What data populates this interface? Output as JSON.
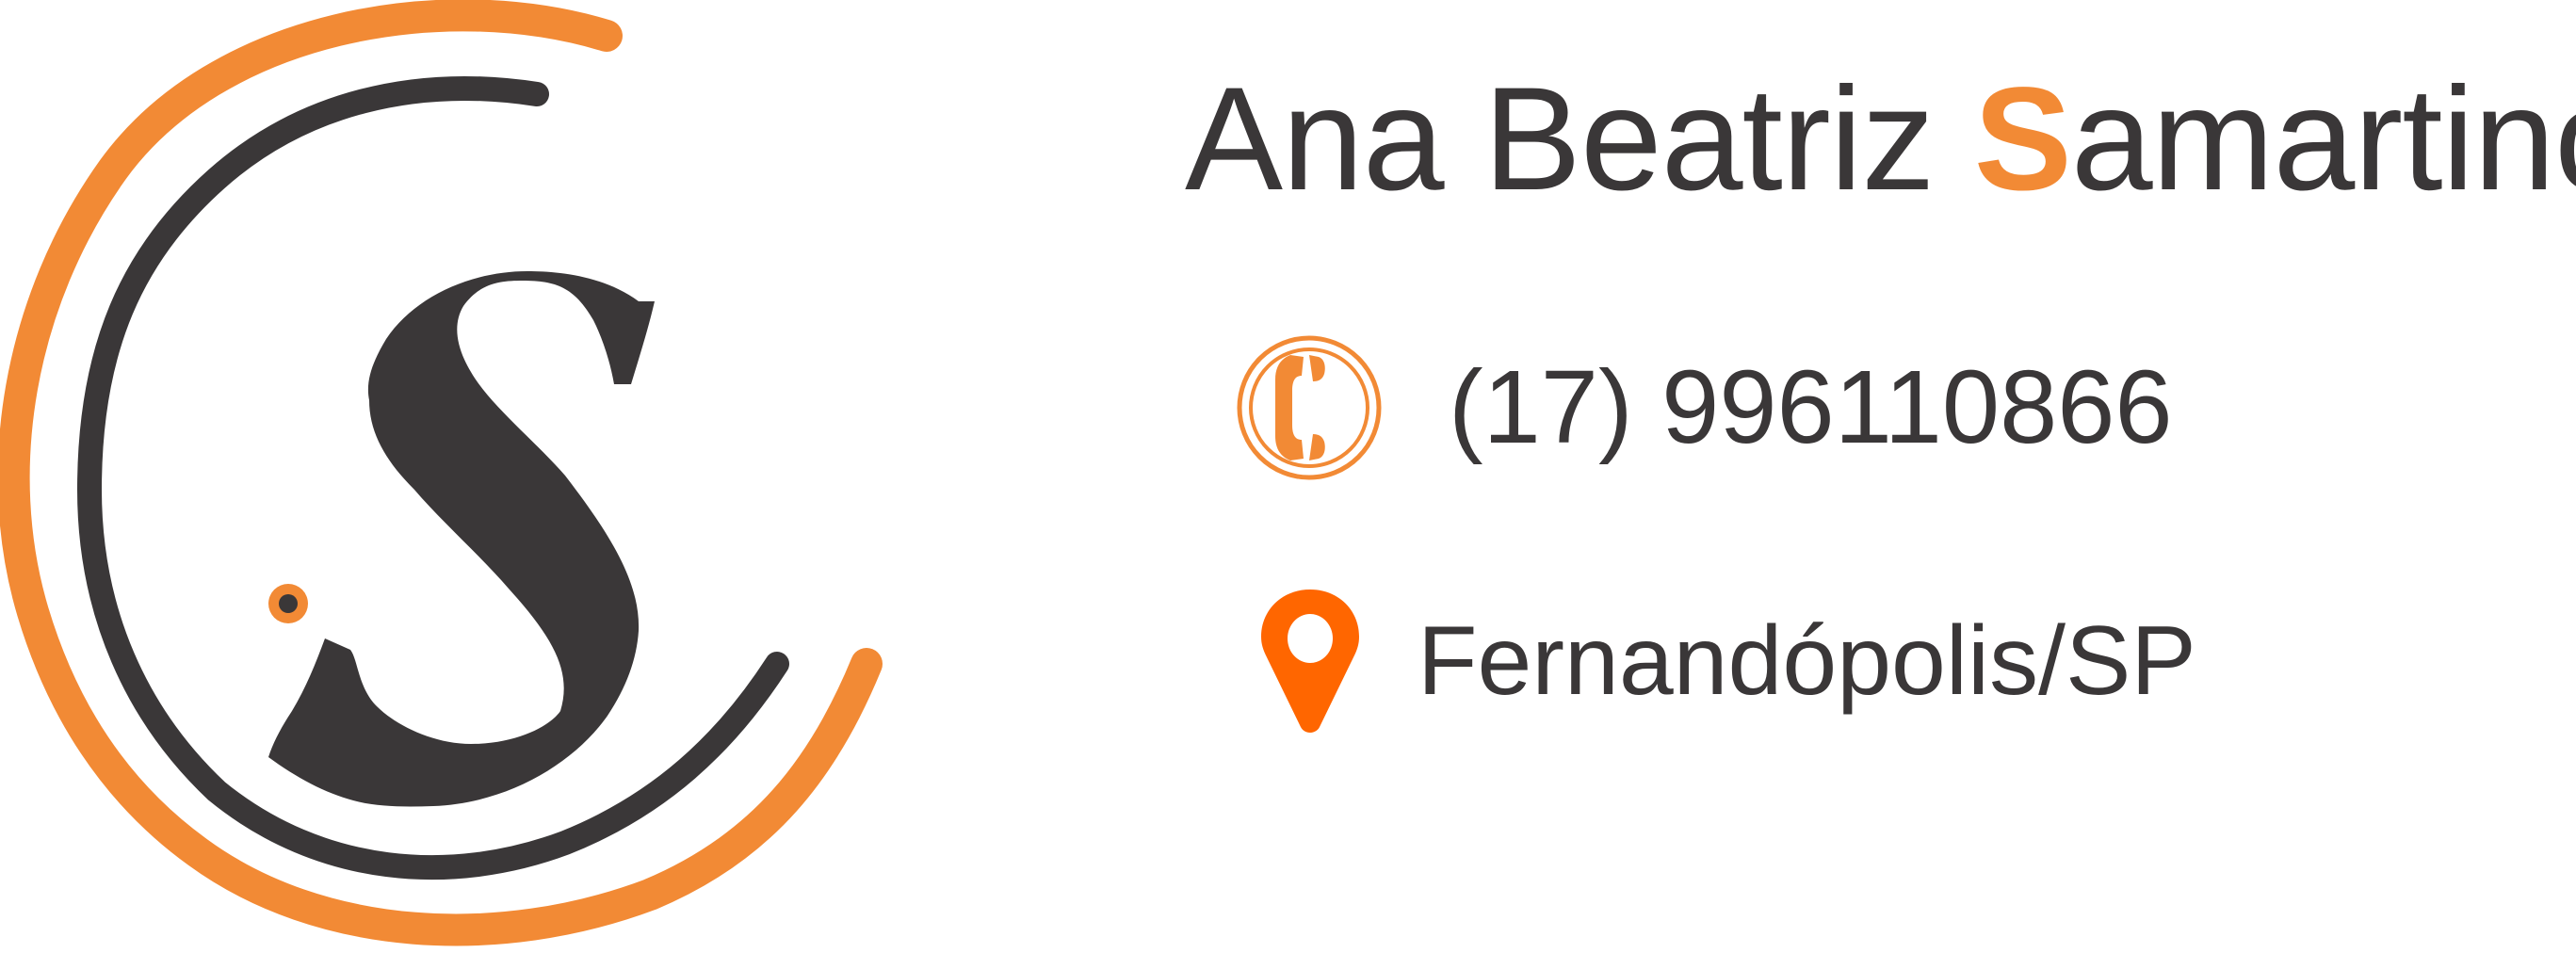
{
  "brand": {
    "logo_name": "s-monogram-logo",
    "orange": "#f28a35",
    "pin_orange": "#ff6600",
    "dark": "#3a3738"
  },
  "card": {
    "name_before": "Ana Beatriz ",
    "name_accent": "S",
    "name_after": "amartino",
    "phone": "(17) 996110866",
    "location": "Fernandópolis/SP"
  },
  "icons": {
    "phone": "phone-icon",
    "location": "map-pin-icon"
  }
}
